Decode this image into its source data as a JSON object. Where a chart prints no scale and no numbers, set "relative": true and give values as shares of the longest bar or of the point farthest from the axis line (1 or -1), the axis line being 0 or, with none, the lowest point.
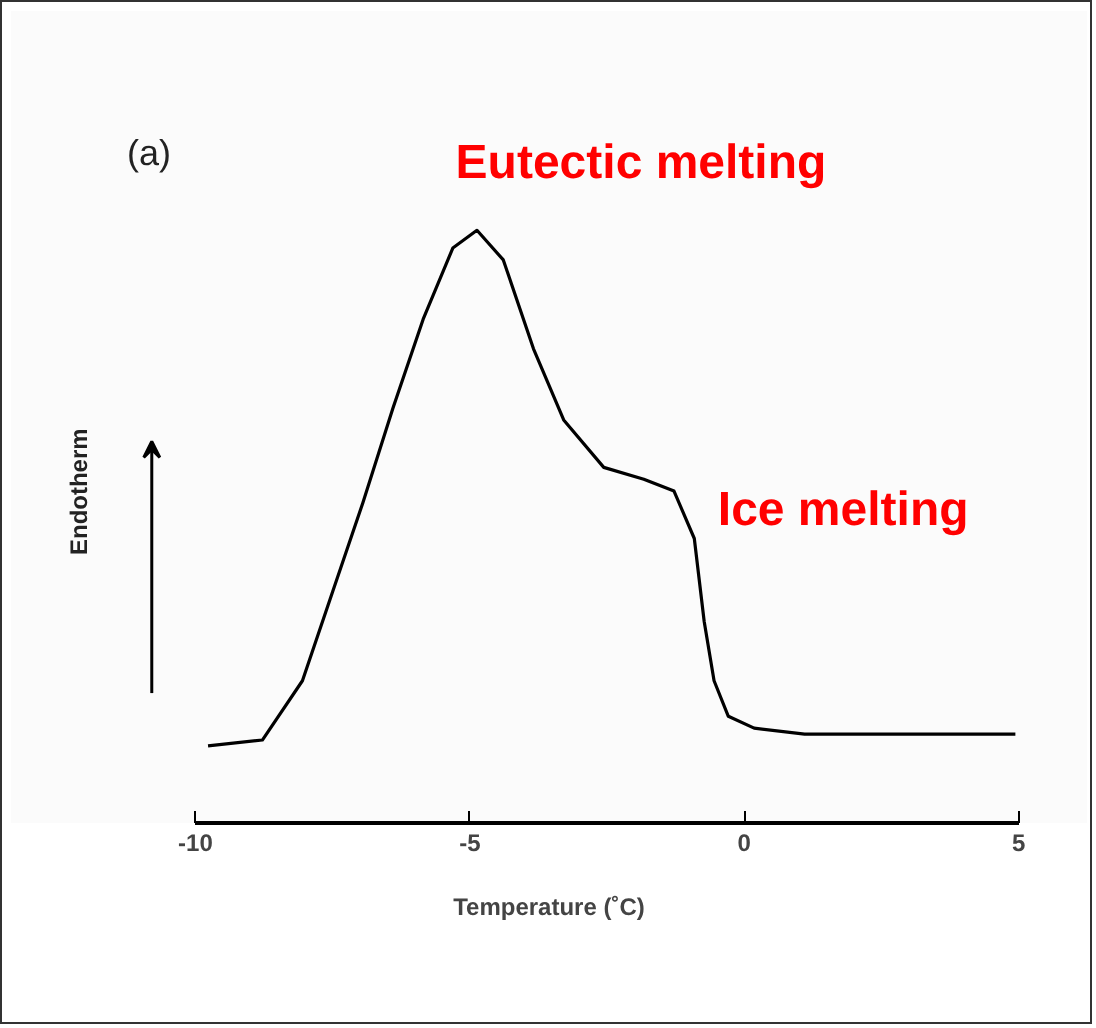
{
  "chart_data": {
    "type": "line",
    "relative": true,
    "xlabel": "Temperature (˚C)",
    "ylabel": "Endotherm",
    "x": [
      -9.77,
      -8.78,
      -8.05,
      -7.5,
      -6.95,
      -6.4,
      -5.85,
      -5.31,
      -4.87,
      -4.39,
      -3.84,
      -3.29,
      -2.56,
      -1.83,
      -1.28,
      -0.91,
      -0.73,
      -0.55,
      -0.29,
      0.18,
      1.1,
      2.93,
      4.94
    ],
    "series": [
      {
        "color": "#000000",
        "values": [
          0.13,
          0.14,
          0.24,
          0.39,
          0.54,
          0.7,
          0.85,
          0.97,
          1,
          0.95,
          0.8,
          0.68,
          0.6,
          0.58,
          0.56,
          0.48,
          0.34,
          0.24,
          0.18,
          0.16,
          0.15,
          0.15,
          0.15
        ]
      }
    ],
    "xlim": [
      -10,
      5
    ],
    "xticks": [
      -10,
      -5,
      0,
      5
    ],
    "grid": false,
    "annotations": [
      "(a)",
      {
        "text": "Eutectic melting",
        "x": -4.87,
        "y": 1
      },
      {
        "text": "Ice melting",
        "x": -1.83,
        "y": 0.58
      }
    ]
  }
}
